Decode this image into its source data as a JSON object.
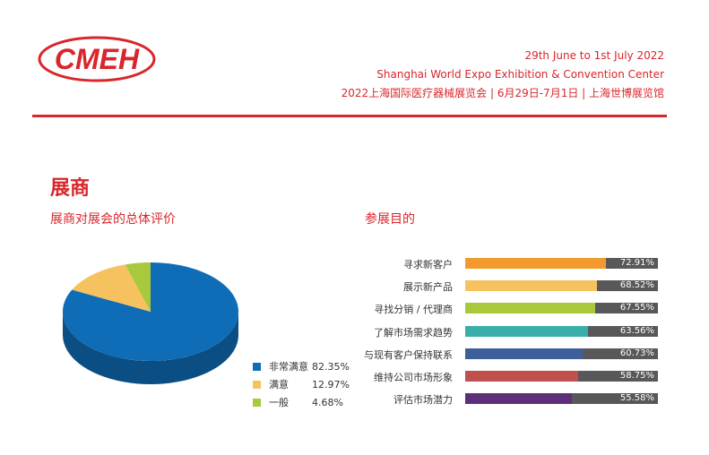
{
  "header": {
    "logo_text": "CMEH",
    "date_line": "29th June  to 1st July 2022",
    "venue_line": "Shanghai World Expo Exhibition & Convention Center",
    "cn_line": "2022上海国际医疗器械展览会 | 6月29日-7月1日 | 上海世博展览馆"
  },
  "section_title": "展商",
  "pie_subtitle": "展商对展会的总体评价",
  "bar_subtitle": "参展目的",
  "chart_data": [
    {
      "type": "pie",
      "title": "展商对展会的总体评价",
      "legend_position": "right-bottom",
      "slices": [
        {
          "label": "非常满意",
          "value": 82.35,
          "value_text": "82.35%",
          "color": "#0f6cb6"
        },
        {
          "label": "满意",
          "value": 12.97,
          "value_text": "12.97%",
          "color": "#f6c15f"
        },
        {
          "label": "一般",
          "value": 4.68,
          "value_text": "4.68%",
          "color": "#a7c93b"
        }
      ]
    },
    {
      "type": "bar",
      "orientation": "horizontal",
      "title": "参展目的",
      "xlim": [
        0,
        100
      ],
      "categories": [
        "寻求新客户",
        "展示新产品",
        "寻找分销 / 代理商",
        "了解市场需求趋势",
        "与现有客户保持联系",
        "维持公司市场形象",
        "评估市场潜力"
      ],
      "values": [
        72.91,
        68.52,
        67.55,
        63.56,
        60.73,
        58.75,
        55.58
      ],
      "value_labels": [
        "72.91%",
        "68.52%",
        "67.55%",
        "63.56%",
        "60.73%",
        "58.75%",
        "55.58%"
      ],
      "colors": [
        "#f29a2e",
        "#f6c15f",
        "#a7c93b",
        "#3aaeaa",
        "#3f5f9b",
        "#c0504d",
        "#5d2f7a"
      ],
      "track_color": "#58585a"
    }
  ]
}
